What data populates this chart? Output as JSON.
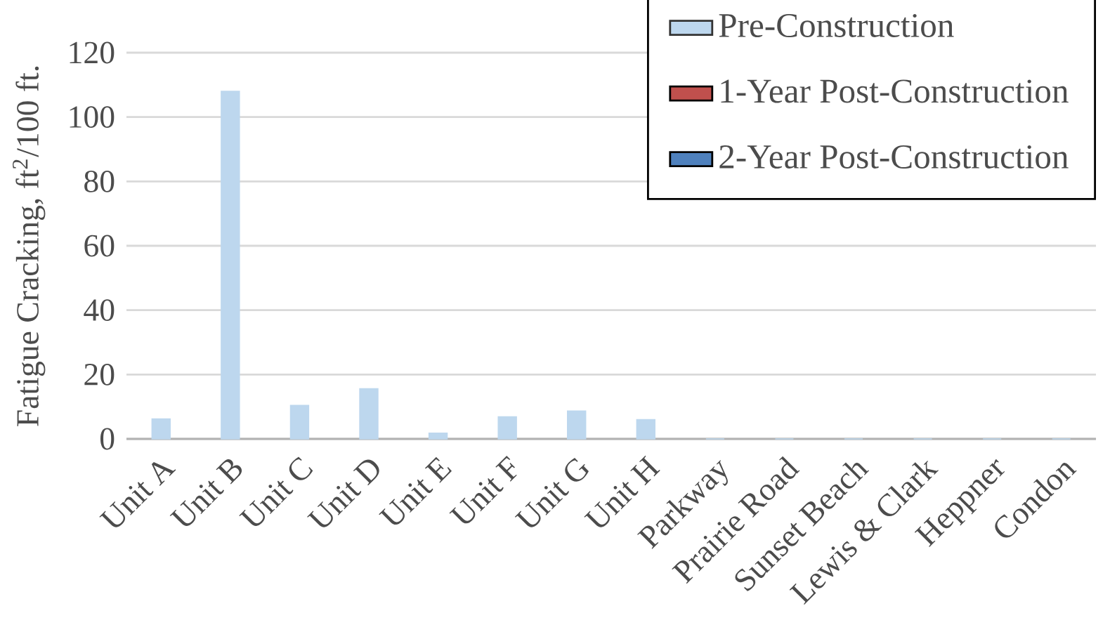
{
  "chart_data": {
    "type": "bar",
    "ylabel": "Fatigue Cracking, ft$^{2}$/100 ft.",
    "categories": [
      "Unit A",
      "Unit B",
      "Unit C",
      "Unit D",
      "Unit E",
      "Unit F",
      "Unit G",
      "Unit H",
      "Parkway",
      "Prairie Road",
      "Sunset Beach",
      "Lewis & Clark",
      "Heppner",
      "Condon"
    ],
    "series": [
      {
        "name": "Pre-Construction",
        "color": "#bdd7ee",
        "values": [
          6.2,
          108,
          10.4,
          15.6,
          1.8,
          6.9,
          8.7,
          6,
          0,
          0,
          0,
          0,
          0,
          0
        ]
      },
      {
        "name": "1-Year Post-Construction",
        "color": "#c0504d",
        "values": [
          null,
          null,
          null,
          null,
          null,
          null,
          null,
          null,
          null,
          null,
          null,
          null,
          null,
          null
        ]
      },
      {
        "name": "2-Year Post-Construction",
        "color": "#4f81bd",
        "values": [
          null,
          null,
          null,
          null,
          null,
          null,
          null,
          null,
          null,
          null,
          null,
          null,
          null,
          null
        ]
      }
    ],
    "ylim": [
      0,
      120
    ],
    "yticks": [
      0,
      20,
      40,
      60,
      80,
      100,
      120
    ],
    "grid": "y",
    "legend": "top right"
  }
}
